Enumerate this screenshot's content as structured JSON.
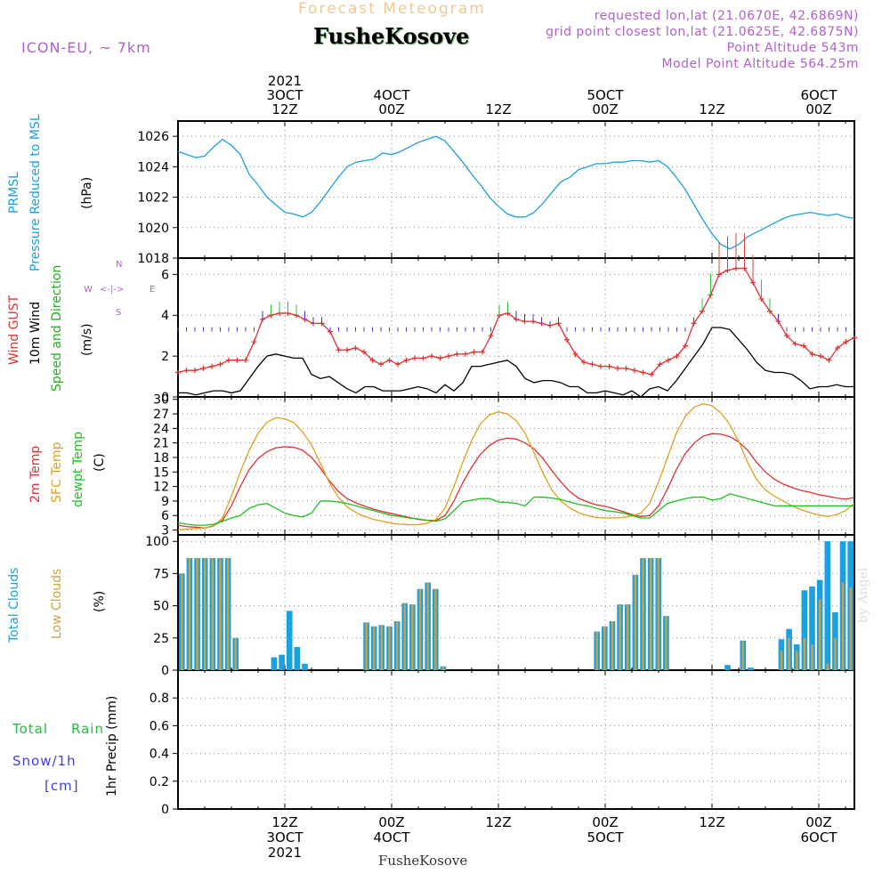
{
  "header": {
    "title_top": "Forecast Meteogram",
    "location": "FusheKosove",
    "model": "ICON-EU, ~ 7km",
    "requested": "requested lon,lat (21.0670E, 42.6869N)",
    "closest": "grid point closest lon,lat (21.0625E, 42.6875N)",
    "point_altitude": "Point Altitude 543m",
    "model_altitude": "Model Point Altitude 564.25m",
    "watermark": "by Angel",
    "footer_location": "FusheKosove"
  },
  "colors": {
    "pressure": "#1ba0e0",
    "gust": "#e03030",
    "wind10m": "#000000",
    "wind_dir": "#20b020",
    "temp2m": "#e03030",
    "sfc_temp": "#e0a020",
    "dewpt": "#20c020",
    "total_clouds": "#1ba0e0",
    "low_clouds": "#d0a040",
    "rain": "#20c040",
    "snow": "#4040e0",
    "meta": "#b060d0",
    "title": "#f0c890"
  },
  "time_axis": {
    "top_labels": [
      {
        "lines": [
          "2021",
          "3OCT",
          "12Z"
        ],
        "hour": 12
      },
      {
        "lines": [
          "4OCT",
          "00Z"
        ],
        "hour": 24
      },
      {
        "lines": [
          "12Z"
        ],
        "hour": 36
      },
      {
        "lines": [
          "5OCT",
          "00Z"
        ],
        "hour": 48
      },
      {
        "lines": [
          "12Z"
        ],
        "hour": 60
      },
      {
        "lines": [
          "6OCT",
          "00Z"
        ],
        "hour": 72
      }
    ],
    "bottom_labels": [
      {
        "lines": [
          "12Z",
          "3OCT",
          "2021"
        ],
        "hour": 12
      },
      {
        "lines": [
          "00Z",
          "4OCT"
        ],
        "hour": 24
      },
      {
        "lines": [
          "12Z"
        ],
        "hour": 36
      },
      {
        "lines": [
          "00Z",
          "5OCT"
        ],
        "hour": 48
      },
      {
        "lines": [
          "12Z"
        ],
        "hour": 60
      },
      {
        "lines": [
          "00Z",
          "6OCT"
        ],
        "hour": 72
      }
    ]
  },
  "panels": {
    "pressure": {
      "labels": [
        "PRMSL",
        "Pressure Reduced to MSL",
        "(hPa)"
      ]
    },
    "wind": {
      "labels": [
        "Wind GUST",
        "10m Wind",
        "(m/s)",
        "Speed and Direction"
      ],
      "compass": {
        "n": "N",
        "s": "S",
        "w": "W",
        "e": "E"
      }
    },
    "temp": {
      "labels": [
        "2m Temp",
        "SFC Temp",
        "dewpt Temp",
        "(C)"
      ]
    },
    "clouds": {
      "labels": [
        "Total Clouds",
        "Low Clouds",
        "(%)"
      ]
    },
    "precip": {
      "labels": [
        "Total",
        "Rain",
        "Snow/1h",
        "[cm]",
        "1hr Precip (mm)"
      ]
    }
  },
  "chart_data": [
    {
      "type": "line",
      "title": "PRMSL Pressure Reduced to MSL",
      "ylabel": "(hPa)",
      "ylim": [
        1018,
        1027
      ],
      "yticks": [
        1018,
        1020,
        1022,
        1024,
        1026
      ],
      "grid": true,
      "x_hours": [
        0,
        1,
        2,
        3,
        4,
        5,
        6,
        7,
        8,
        9,
        10,
        11,
        12,
        13,
        14,
        15,
        16,
        17,
        18,
        19,
        20,
        21,
        22,
        23,
        24,
        25,
        26,
        27,
        28,
        29,
        30,
        31,
        32,
        33,
        34,
        35,
        36,
        37,
        38,
        39,
        40,
        41,
        42,
        43,
        44,
        45,
        46,
        47,
        48,
        49,
        50,
        51,
        52,
        53,
        54,
        55,
        56,
        57,
        58,
        59,
        60,
        61,
        62,
        63,
        64,
        65,
        66,
        67,
        68,
        69,
        70,
        71,
        72,
        73,
        74,
        75,
        76
      ],
      "series": [
        {
          "name": "PRMSL",
          "values": [
            1025.0,
            1024.8,
            1024.6,
            1024.7,
            1025.3,
            1025.8,
            1025.4,
            1024.8,
            1023.5,
            1022.8,
            1022.0,
            1021.5,
            1021.0,
            1020.9,
            1020.7,
            1021.0,
            1021.7,
            1022.5,
            1023.3,
            1024.0,
            1024.3,
            1024.4,
            1024.5,
            1024.9,
            1024.8,
            1025.0,
            1025.3,
            1025.6,
            1025.8,
            1026.0,
            1025.7,
            1025.0,
            1024.3,
            1023.5,
            1022.8,
            1022.0,
            1021.4,
            1020.9,
            1020.7,
            1020.7,
            1021.0,
            1021.6,
            1022.3,
            1023.0,
            1023.3,
            1023.8,
            1024.0,
            1024.2,
            1024.2,
            1024.3,
            1024.3,
            1024.4,
            1024.4,
            1024.3,
            1024.4,
            1024.0,
            1023.3,
            1022.5,
            1021.5,
            1020.5,
            1019.6,
            1018.9,
            1018.6,
            1018.9,
            1019.4,
            1019.7,
            1020.0,
            1020.3,
            1020.6,
            1020.8,
            1020.9,
            1021.0,
            1020.9,
            1020.8,
            1020.9,
            1020.7,
            1020.6
          ]
        }
      ]
    },
    {
      "type": "line",
      "title": "Wind GUST / 10m Wind Speed and Direction",
      "ylabel": "(m/s)",
      "ylim": [
        0,
        6.8
      ],
      "yticks": [
        0,
        2,
        4,
        6
      ],
      "grid": true,
      "series": [
        {
          "name": "Wind GUST",
          "values": [
            1.2,
            1.3,
            1.3,
            1.4,
            1.5,
            1.6,
            1.8,
            1.8,
            1.8,
            2.7,
            3.8,
            4.0,
            4.1,
            4.1,
            4.0,
            3.8,
            3.6,
            3.6,
            3.2,
            2.3,
            2.3,
            2.4,
            2.2,
            1.8,
            1.6,
            1.8,
            1.6,
            1.8,
            1.9,
            1.9,
            2.0,
            1.9,
            2.0,
            2.1,
            2.1,
            2.2,
            2.2,
            3.0,
            4.0,
            4.1,
            3.8,
            3.7,
            3.7,
            3.6,
            3.5,
            3.6,
            2.8,
            2.1,
            1.7,
            1.6,
            1.5,
            1.5,
            1.4,
            1.4,
            1.3,
            1.2,
            1.1,
            1.6,
            1.8,
            2.0,
            2.5,
            3.6,
            4.2,
            5.0,
            6.0,
            6.2,
            6.3,
            6.3,
            5.6,
            4.8,
            4.2,
            3.7,
            3.0,
            2.6,
            2.5,
            2.1,
            2.0,
            1.8,
            2.4,
            2.7,
            2.9
          ]
        },
        {
          "name": "10m Wind",
          "values": [
            0.2,
            0.2,
            0.1,
            0.2,
            0.3,
            0.3,
            0.2,
            0.3,
            0.9,
            1.5,
            2.0,
            2.1,
            2.0,
            1.9,
            1.9,
            1.1,
            0.9,
            1.0,
            0.7,
            0.4,
            0.2,
            0.5,
            0.5,
            0.3,
            0.3,
            0.3,
            0.4,
            0.5,
            0.4,
            0.2,
            0.6,
            0.3,
            0.7,
            1.5,
            1.5,
            1.6,
            1.7,
            1.8,
            1.5,
            0.9,
            0.7,
            0.8,
            0.8,
            0.7,
            0.5,
            0.5,
            0.2,
            0.2,
            0.3,
            0.2,
            0.1,
            0.3,
            0.0,
            0.4,
            0.5,
            0.3,
            0.8,
            1.4,
            2.0,
            2.6,
            3.4,
            3.4,
            3.3,
            2.8,
            2.3,
            1.7,
            1.3,
            1.2,
            1.2,
            1.1,
            0.8,
            0.4,
            0.5,
            0.5,
            0.6,
            0.5,
            0.5
          ]
        }
      ]
    },
    {
      "type": "line",
      "title": "2m Temp / SFC Temp / dewpt Temp",
      "ylabel": "(C)",
      "ylim": [
        2,
        30.5
      ],
      "yticks": [
        3,
        6,
        9,
        12,
        15,
        18,
        21,
        24,
        27,
        30
      ],
      "grid": true,
      "series": [
        {
          "name": "2m Temp",
          "values": [
            4.0,
            3.7,
            3.6,
            3.4,
            3.9,
            5.0,
            8.0,
            12.0,
            15.5,
            17.8,
            19.2,
            20.0,
            20.2,
            20.1,
            19.5,
            18.0,
            15.8,
            13.2,
            11.0,
            9.5,
            8.6,
            7.9,
            7.3,
            6.8,
            6.4,
            6.0,
            5.6,
            5.2,
            5.0,
            5.0,
            6.0,
            9.0,
            12.8,
            16.0,
            18.7,
            20.5,
            21.6,
            22.0,
            21.8,
            21.0,
            19.8,
            17.8,
            15.3,
            13.0,
            11.0,
            9.6,
            8.8,
            8.2,
            7.9,
            7.4,
            6.8,
            6.2,
            5.8,
            6.0,
            8.0,
            11.5,
            15.5,
            18.8,
            21.0,
            22.4,
            22.9,
            22.8,
            22.3,
            21.2,
            19.5,
            17.0,
            15.0,
            13.5,
            12.5,
            11.8,
            11.2,
            10.8,
            10.3,
            10.0,
            9.6,
            9.4,
            9.7
          ]
        },
        {
          "name": "SFC Temp",
          "values": [
            3.0,
            3.2,
            3.3,
            3.4,
            3.8,
            5.5,
            10.0,
            15.0,
            19.5,
            23.0,
            25.3,
            26.2,
            26.0,
            25.2,
            23.3,
            20.6,
            16.8,
            12.8,
            9.8,
            7.8,
            6.6,
            5.8,
            5.2,
            4.8,
            4.4,
            4.2,
            4.1,
            4.1,
            4.4,
            5.2,
            7.5,
            12.0,
            17.0,
            21.5,
            25.0,
            26.8,
            27.4,
            27.0,
            25.6,
            23.0,
            19.0,
            14.8,
            11.3,
            9.0,
            7.6,
            6.6,
            6.0,
            5.6,
            5.5,
            5.5,
            5.6,
            5.9,
            6.5,
            8.5,
            13.0,
            18.0,
            23.0,
            26.5,
            28.4,
            29.1,
            28.7,
            27.2,
            24.8,
            21.3,
            17.0,
            13.5,
            11.3,
            10.0,
            9.0,
            8.0,
            7.2,
            6.6,
            6.1,
            5.8,
            6.2,
            7.0,
            8.5
          ]
        },
        {
          "name": "dewpt Temp",
          "values": [
            4.5,
            4.2,
            4.0,
            4.0,
            4.2,
            4.8,
            5.5,
            6.0,
            7.5,
            8.2,
            8.5,
            7.5,
            6.5,
            6.0,
            5.7,
            6.5,
            9.0,
            9.0,
            8.8,
            8.5,
            8.0,
            7.5,
            7.0,
            6.5,
            6.0,
            5.8,
            5.5,
            5.3,
            5.0,
            4.8,
            5.3,
            7.0,
            8.8,
            9.2,
            9.5,
            9.5,
            8.8,
            8.7,
            8.5,
            8.0,
            9.8,
            9.8,
            9.6,
            9.3,
            8.8,
            8.3,
            8.0,
            7.5,
            7.0,
            6.8,
            6.5,
            6.0,
            5.5,
            5.5,
            7.0,
            8.5,
            9.0,
            9.5,
            9.8,
            9.8,
            9.2,
            9.5,
            10.5,
            10.0,
            9.5,
            9.0,
            8.5,
            8.0,
            8.0,
            8.0,
            8.0,
            8.0,
            8.0,
            8.0,
            8.0,
            8.0,
            8.0
          ]
        }
      ]
    },
    {
      "type": "bar",
      "title": "Total Clouds / Low Clouds",
      "ylabel": "(%)",
      "ylim": [
        0,
        105
      ],
      "yticks": [
        0,
        25,
        50,
        75,
        100
      ],
      "grid": true,
      "series": [
        {
          "name": "Total Clouds",
          "values": [
            75,
            87,
            87,
            87,
            87,
            87,
            87,
            25,
            0,
            0,
            0,
            0,
            10,
            12,
            46,
            18,
            5,
            0,
            0,
            0,
            0,
            0,
            0,
            0,
            37,
            34,
            35,
            34,
            38,
            52,
            51,
            63,
            68,
            63,
            3,
            0,
            0,
            0,
            0,
            0,
            0,
            0,
            0,
            0,
            0,
            0,
            0,
            0,
            0,
            0,
            0,
            0,
            0,
            0,
            30,
            34,
            38,
            51,
            51,
            74,
            87,
            87,
            87,
            42,
            0,
            0,
            0,
            0,
            0,
            0,
            0,
            4,
            0,
            23,
            2,
            0,
            0,
            0,
            24,
            32,
            20,
            62,
            65,
            70,
            100,
            45,
            100,
            100
          ]
        },
        {
          "name": "Low Clouds",
          "values": [
            75,
            87,
            87,
            87,
            87,
            87,
            87,
            25,
            0,
            0,
            0,
            0,
            0,
            0,
            0,
            0,
            0,
            0,
            0,
            0,
            0,
            0,
            0,
            0,
            37,
            34,
            35,
            34,
            38,
            52,
            51,
            63,
            68,
            63,
            3,
            0,
            0,
            0,
            0,
            0,
            0,
            0,
            0,
            0,
            0,
            0,
            0,
            0,
            0,
            0,
            0,
            0,
            0,
            0,
            30,
            34,
            38,
            51,
            51,
            74,
            87,
            87,
            87,
            42,
            0,
            0,
            0,
            0,
            0,
            0,
            0,
            0,
            0,
            23,
            0,
            0,
            0,
            0,
            15,
            25,
            15,
            25,
            20,
            55,
            5,
            25,
            68,
            64
          ]
        }
      ]
    },
    {
      "type": "line",
      "title": "1hr Precip (mm)",
      "ylabel": "1hr Precip (mm)",
      "ylim": [
        0,
        1.0
      ],
      "yticks": [
        0,
        0.2,
        0.4,
        0.6,
        0.8
      ],
      "grid": true,
      "series": [
        {
          "name": "Total Rain",
          "values": [
            0,
            0,
            0,
            0,
            0,
            0,
            0,
            0,
            0,
            0,
            0,
            0,
            0,
            0,
            0,
            0,
            0,
            0,
            0,
            0,
            0,
            0,
            0,
            0,
            0,
            0,
            0,
            0,
            0,
            0,
            0,
            0,
            0,
            0,
            0,
            0,
            0,
            0,
            0,
            0,
            0,
            0,
            0,
            0,
            0,
            0,
            0,
            0,
            0,
            0,
            0,
            0,
            0,
            0,
            0,
            0,
            0,
            0,
            0,
            0,
            0,
            0,
            0,
            0,
            0,
            0,
            0,
            0,
            0,
            0,
            0,
            0,
            0,
            0,
            0,
            0,
            0
          ]
        }
      ]
    }
  ]
}
